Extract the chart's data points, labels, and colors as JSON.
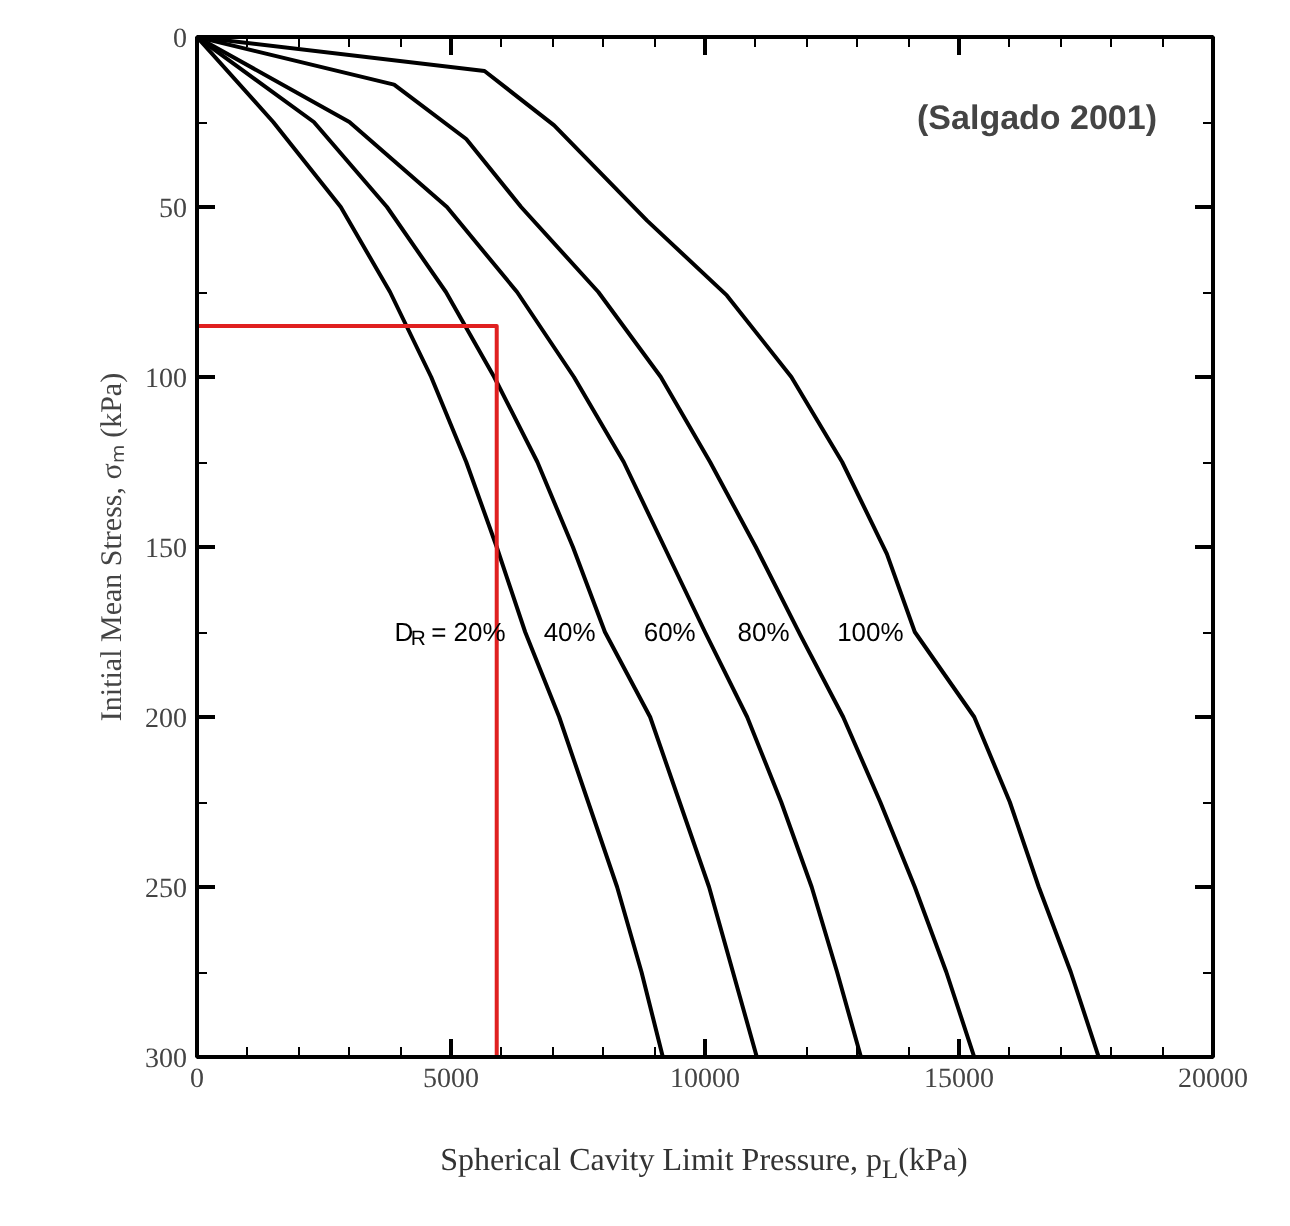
{
  "chart_data": {
    "type": "line",
    "xlabel": "Spherical Cavity Limit Pressure, p$_{L}$(kPa)",
    "ylabel": "Initial Mean Stress, σₘ (kPa)",
    "annotations": [
      "(Salgado 2001)"
    ],
    "xlim": [
      0,
      20000
    ],
    "ylim": [
      300,
      0
    ],
    "xticks": [
      0,
      {
        "value": 1000,
        "label": null
      },
      {
        "value": 2000,
        "label": null
      },
      {
        "value": 3000,
        "label": null
      },
      {
        "value": 4000,
        "label": null
      },
      5000,
      {
        "value": 6000,
        "label": null
      },
      {
        "value": 7000,
        "label": null
      },
      {
        "value": 8000,
        "label": null
      },
      {
        "value": 9000,
        "label": null
      },
      10000,
      {
        "value": 11000,
        "label": null
      },
      {
        "value": 12000,
        "label": null
      },
      {
        "value": 13000,
        "label": null
      },
      {
        "value": 14000,
        "label": null
      },
      15000,
      {
        "value": 16000,
        "label": null
      },
      {
        "value": 17000,
        "label": null
      },
      {
        "value": 18000,
        "label": null
      },
      {
        "value": 19000,
        "label": null
      },
      20000
    ],
    "yticks": [
      0,
      {
        "value": 25,
        "label": null
      },
      50,
      {
        "value": 75,
        "label": null
      },
      100,
      {
        "value": 125,
        "label": null
      },
      150,
      {
        "value": 175,
        "label": null
      },
      200,
      {
        "value": 225,
        "label": null
      },
      250,
      {
        "value": 275,
        "label": null
      },
      300
    ],
    "grid": false,
    "marker": "none",
    "line_style": "solid",
    "series": [
      {
        "name": "D$_{R}$ = 20%",
        "color": "#000000",
        "x": [
          0,
          1500,
          2830,
          3800,
          4610,
          5300,
          5900,
          6460,
          7130,
          7700,
          8270,
          8750,
          9170
        ],
        "values": [
          0,
          25,
          50,
          75,
          100,
          125,
          150,
          175,
          200,
          225,
          250,
          275,
          300
        ]
      },
      {
        "name": "40%",
        "color": "#000000",
        "x": [
          0,
          2300,
          3740,
          4900,
          5850,
          6700,
          7400,
          8030,
          8920,
          9500,
          10080,
          10550,
          11020
        ],
        "values": [
          0,
          25,
          50,
          75,
          100,
          125,
          150,
          175,
          200,
          225,
          250,
          275,
          300
        ]
      },
      {
        "name": "60%",
        "color": "#000000",
        "x": [
          0,
          3000,
          4920,
          6300,
          7420,
          8400,
          9200,
          10000,
          10830,
          11500,
          12100,
          12600,
          13070
        ],
        "values": [
          0,
          25,
          50,
          75,
          100,
          125,
          150,
          175,
          200,
          225,
          250,
          275,
          300
        ]
      },
      {
        "name": "80%",
        "color": "#000000",
        "x": [
          0,
          3880,
          5300,
          6380,
          7900,
          9130,
          10100,
          11000,
          11880,
          12720,
          13450,
          14130,
          14750,
          15300
        ],
        "values": [
          0,
          14,
          30,
          50,
          75,
          100,
          125,
          150,
          176,
          200,
          225,
          250,
          275,
          300
        ]
      },
      {
        "name": "100%",
        "color": "#000000",
        "x": [
          0,
          5660,
          7030,
          8860,
          10430,
          11700,
          12700,
          13580,
          14130,
          15300,
          16000,
          16570,
          17200,
          17750
        ],
        "values": [
          0,
          10,
          26,
          54,
          76,
          100,
          125,
          152,
          175,
          200,
          225,
          250,
          275,
          300
        ]
      },
      {
        "color": "#e02020",
        "x": [
          0,
          5900,
          5900
        ],
        "values": [
          85,
          85,
          300
        ]
      }
    ]
  }
}
